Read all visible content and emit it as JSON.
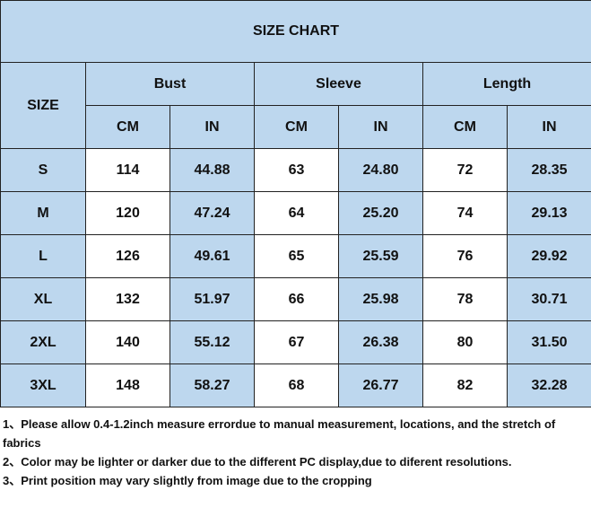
{
  "title": "SIZE CHART",
  "size_header": "SIZE",
  "groups": [
    "Bust",
    "Sleeve",
    "Length"
  ],
  "units": [
    "CM",
    "IN",
    "CM",
    "IN",
    "CM",
    "IN"
  ],
  "rows": [
    [
      "S",
      "114",
      "44.88",
      "63",
      "24.80",
      "72",
      "28.35"
    ],
    [
      "M",
      "120",
      "47.24",
      "64",
      "25.20",
      "74",
      "29.13"
    ],
    [
      "L",
      "126",
      "49.61",
      "65",
      "25.59",
      "76",
      "29.92"
    ],
    [
      "XL",
      "132",
      "51.97",
      "66",
      "25.98",
      "78",
      "30.71"
    ],
    [
      "2XL",
      "140",
      "55.12",
      "67",
      "26.38",
      "80",
      "31.50"
    ],
    [
      "3XL",
      "148",
      "58.27",
      "68",
      "26.77",
      "82",
      "32.28"
    ]
  ],
  "notes": [
    "1、Please allow 0.4-1.2inch measure errordue to manual measurement, locations, and the stretch of fabrics",
    "2、Color may be lighter or darker due to the different PC display,due to diferent resolutions.",
    "3、Print position may vary slightly from image due to the cropping"
  ]
}
